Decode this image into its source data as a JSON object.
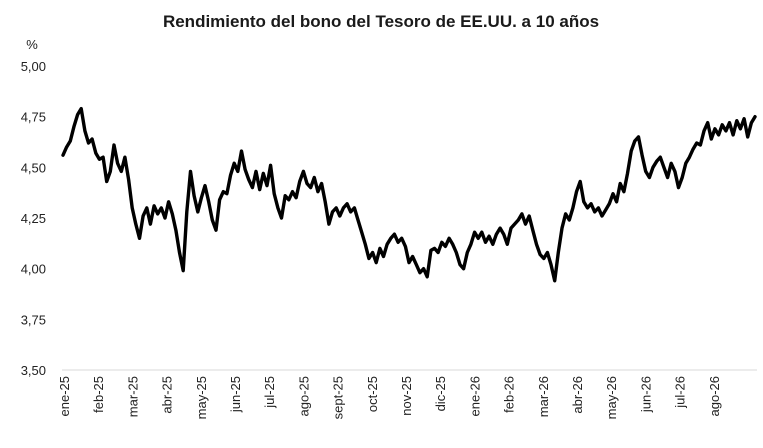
{
  "chart_data": {
    "type": "line",
    "title": "Rendimiento del bono del Tesoro de EE.UU. a 10 años",
    "ylabel": "%",
    "xlabel": "",
    "ylim": [
      3.5,
      5.0
    ],
    "yticks": [
      "3,50",
      "3,75",
      "4,00",
      "4,25",
      "4,50",
      "4,75",
      "5,00"
    ],
    "ytick_values": [
      3.5,
      3.75,
      4.0,
      4.25,
      4.5,
      4.75,
      5.0
    ],
    "xticks": [
      "ene-25",
      "feb-25",
      "mar-25",
      "abr-25",
      "may-25",
      "jun-25",
      "jul-25",
      "ago-25",
      "sept-25",
      "oct-25",
      "nov-25",
      "dic-25",
      "ene-26",
      "feb-26",
      "mar-26",
      "abr-26",
      "may-26",
      "jun-26",
      "jul-26",
      "ago-26"
    ],
    "grid": false,
    "legend": "none",
    "line_color": "#000000",
    "series": [
      {
        "values": [
          4.56,
          4.6,
          4.63,
          4.7,
          4.76,
          4.79,
          4.68,
          4.62,
          4.64,
          4.57,
          4.54,
          4.55,
          4.43,
          4.48,
          4.61,
          4.52,
          4.48,
          4.55,
          4.44,
          4.3,
          4.22,
          4.15,
          4.26,
          4.3,
          4.22,
          4.31,
          4.27,
          4.3,
          4.25,
          4.33,
          4.27,
          4.19,
          4.08,
          3.99,
          4.28,
          4.48,
          4.36,
          4.28,
          4.35,
          4.41,
          4.33,
          4.24,
          4.19,
          4.34,
          4.38,
          4.37,
          4.46,
          4.52,
          4.48,
          4.58,
          4.49,
          4.44,
          4.4,
          4.48,
          4.39,
          4.47,
          4.41,
          4.51,
          4.37,
          4.3,
          4.25,
          4.36,
          4.34,
          4.38,
          4.35,
          4.43,
          4.48,
          4.42,
          4.4,
          4.45,
          4.38,
          4.42,
          4.33,
          4.22,
          4.28,
          4.3,
          4.26,
          4.3,
          4.32,
          4.28,
          4.3,
          4.24,
          4.18,
          4.12,
          4.05,
          4.08,
          4.03,
          4.1,
          4.06,
          4.12,
          4.15,
          4.17,
          4.13,
          4.15,
          4.11,
          4.03,
          4.06,
          4.02,
          3.98,
          4.0,
          3.96,
          4.09,
          4.1,
          4.08,
          4.13,
          4.11,
          4.15,
          4.12,
          4.08,
          4.02,
          4.0,
          4.08,
          4.12,
          4.18,
          4.15,
          4.18,
          4.13,
          4.16,
          4.12,
          4.17,
          4.2,
          4.17,
          4.12,
          4.2,
          4.22,
          4.24,
          4.27,
          4.22,
          4.26,
          4.19,
          4.12,
          4.07,
          4.05,
          4.08,
          4.02,
          3.94,
          4.08,
          4.2,
          4.27,
          4.24,
          4.3,
          4.38,
          4.43,
          4.33,
          4.3,
          4.32,
          4.28,
          4.3,
          4.26,
          4.29,
          4.32,
          4.37,
          4.33,
          4.42,
          4.38,
          4.47,
          4.58,
          4.63,
          4.65,
          4.56,
          4.48,
          4.45,
          4.5,
          4.53,
          4.55,
          4.5,
          4.45,
          4.52,
          4.48,
          4.4,
          4.45,
          4.52,
          4.55,
          4.59,
          4.62,
          4.61,
          4.68,
          4.72,
          4.64,
          4.69,
          4.66,
          4.71,
          4.68,
          4.72,
          4.66,
          4.73,
          4.69,
          4.74,
          4.65,
          4.72,
          4.75
        ]
      }
    ]
  }
}
